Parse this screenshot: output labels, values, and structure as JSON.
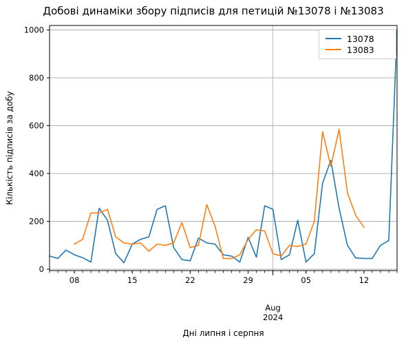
{
  "chart_data": {
    "type": "line",
    "title": "Добові динаміки збору підписів для петицій №13078 і №13083",
    "xlabel": "Дні липня і серпня",
    "ylabel": "Кількість підписів за добу",
    "ylim": [
      0,
      1000
    ],
    "y_ticks": [
      0,
      200,
      400,
      600,
      800,
      1000
    ],
    "x_axis": {
      "timeline_start": "2024-07-05",
      "timeline_days": 42,
      "tick_labels": [
        "08",
        "15",
        "22",
        "29",
        "05",
        "12"
      ],
      "tick_days": [
        3,
        10,
        17,
        24,
        31,
        38
      ],
      "minor_ticks": "daily",
      "month_boundary_day": 27,
      "month_label": "Aug",
      "year_label": "2024"
    },
    "grid": {
      "horizontal": true,
      "vertical_month_boundary": true,
      "color": "#b0b0b0"
    },
    "legend_position": "upper right",
    "series": [
      {
        "name": "13078",
        "color": "#1f77b4",
        "start_date": "2024-07-05",
        "start_day": 0,
        "values": [
          55,
          45,
          80,
          60,
          48,
          30,
          255,
          205,
          65,
          27,
          105,
          125,
          135,
          250,
          265,
          90,
          40,
          35,
          130,
          110,
          105,
          60,
          55,
          30,
          133,
          50,
          265,
          250,
          40,
          60,
          205,
          30,
          65,
          360,
          455,
          255,
          100,
          47,
          45,
          45,
          100,
          120,
          1000
        ]
      },
      {
        "name": "13083",
        "color": "#ff7f0e",
        "start_date": "2024-07-08",
        "start_day": 3,
        "values": [
          105,
          125,
          235,
          235,
          250,
          135,
          110,
          105,
          110,
          75,
          105,
          100,
          110,
          195,
          90,
          100,
          270,
          180,
          45,
          45,
          60,
          125,
          165,
          160,
          65,
          55,
          100,
          95,
          105,
          200,
          575,
          430,
          585,
          320,
          225,
          175
        ]
      }
    ],
    "axis_color": "#000000",
    "background_color": "#ffffff"
  }
}
